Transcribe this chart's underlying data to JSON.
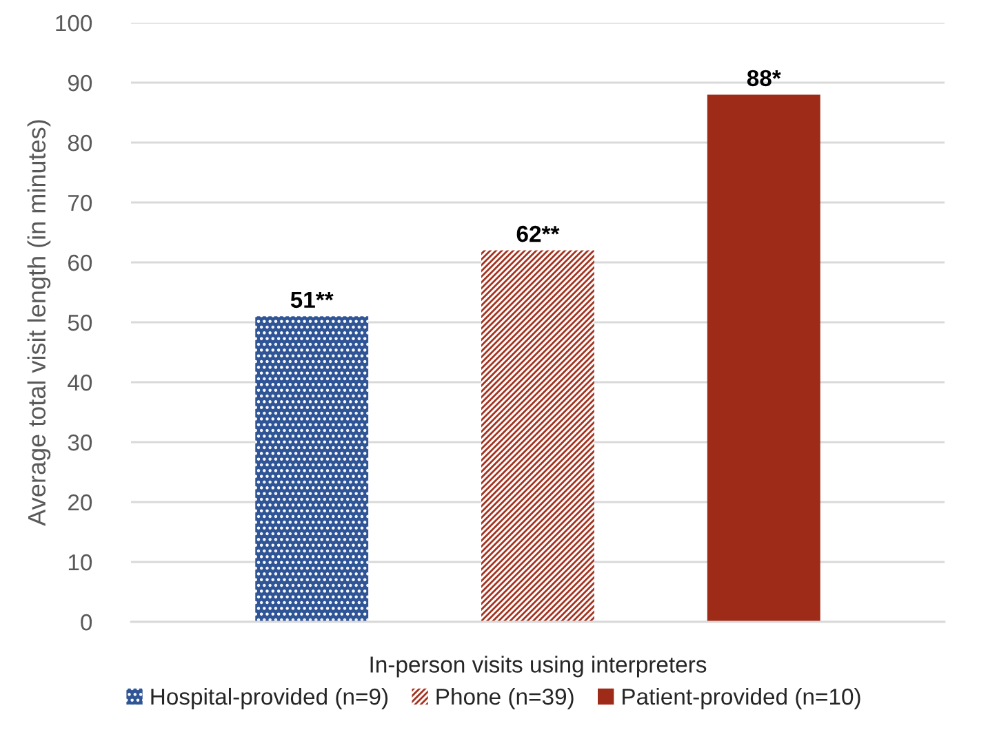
{
  "chart_data": {
    "type": "bar",
    "xlabel": "In-person visits using interpreters",
    "ylabel": "Average total visit length (in minutes)",
    "categories": [
      null
    ],
    "series": [
      {
        "name": "Hospital-provided (n=9)",
        "color": "#2f5597",
        "values": [
          51
        ],
        "value_labels": [
          "51**"
        ]
      },
      {
        "name": "Phone (n=39)",
        "color": "#a5321f",
        "values": [
          62
        ],
        "value_labels": [
          "62**"
        ]
      },
      {
        "name": "Patient-provided (n=10)",
        "color": "#9e2a18",
        "values": [
          88
        ],
        "value_labels": [
          "88*"
        ]
      }
    ],
    "ylim": [
      0,
      100
    ],
    "yticks": [
      0,
      10,
      20,
      30,
      40,
      50,
      60,
      70,
      80,
      90,
      100
    ],
    "grid": "y",
    "legend": "bottom",
    "tick_labels": "y"
  }
}
